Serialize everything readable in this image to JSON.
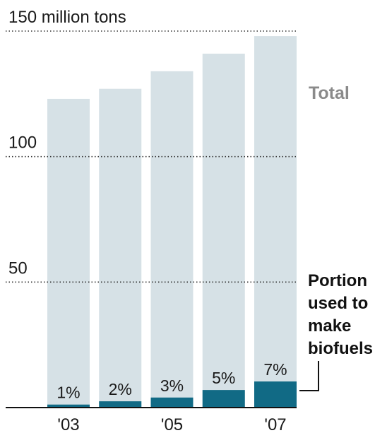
{
  "chart_data": {
    "type": "bar",
    "categories": [
      "2003",
      "2004",
      "2005",
      "2006",
      "2007"
    ],
    "x_tick_labels": [
      "'03",
      "",
      "'05",
      "",
      "'07"
    ],
    "series": [
      {
        "name": "Total",
        "values": [
          123,
          127,
          134,
          141,
          148
        ]
      },
      {
        "name": "Portion used to make biofuels",
        "values": [
          1.2,
          2.5,
          4.0,
          7.0,
          10.4
        ]
      }
    ],
    "percent_labels": [
      "1%",
      "2%",
      "3%",
      "5%",
      "7%"
    ],
    "y_ticks": [
      {
        "value": 150,
        "label": "150 million tons"
      },
      {
        "value": 100,
        "label": "100"
      },
      {
        "value": 50,
        "label": "50"
      }
    ],
    "ylim": [
      0,
      150
    ],
    "grid": "dotted",
    "legend": {
      "total": "Total",
      "portion_lines": [
        "Portion",
        "used to",
        "make",
        "biofuels"
      ]
    },
    "colors": {
      "total_bar": "#d6e1e6",
      "portion_bar": "#116a85",
      "text": "#1a1a1a",
      "total_label": "#8a8a8a",
      "grid": "#333333"
    }
  }
}
